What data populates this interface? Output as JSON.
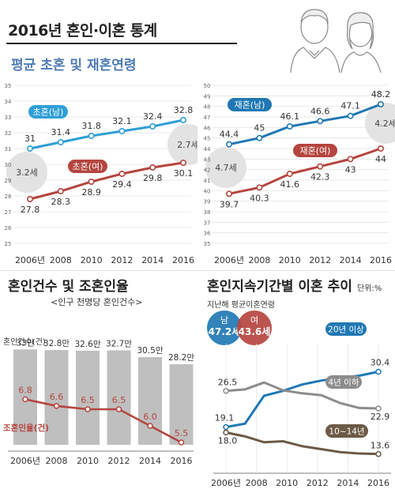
{
  "header": {
    "title": "2016년 혼인·이혼 통계"
  },
  "sections": {
    "age_title": "평균 초혼 및 재혼연령",
    "marriage_title": "혼인건수 및 조혼인율",
    "marriage_subtitle": "<인구 천명당 혼인건수>",
    "divorce_title": "혼인지속기간별 이혼 추이",
    "divorce_unit": "단위:%"
  },
  "colors": {
    "blue": "#2f9fd6",
    "red": "#b5453f",
    "navy": "#1f78b4",
    "grey_line": "#8c8c8c",
    "brown": "#6b5a45",
    "bar": "#bfbfbf",
    "title_blue": "#4f7bb5"
  },
  "chart_data": [
    {
      "id": "first-marriage-age",
      "type": "line",
      "x": [
        "2006년",
        "2008",
        "2010",
        "2012",
        "2014",
        "2016"
      ],
      "ylim": [
        25,
        35
      ],
      "yticks": [
        25,
        26,
        27,
        28,
        29,
        30,
        31,
        32,
        33,
        34,
        35
      ],
      "series": [
        {
          "name": "초혼(남)",
          "values": [
            31,
            31.4,
            31.8,
            32.1,
            32.4,
            32.8
          ],
          "labels": [
            "31",
            "31.4",
            "31.8",
            "32.1",
            "32.4",
            "32.8"
          ],
          "color": "#2f9fd6"
        },
        {
          "name": "초혼(여)",
          "values": [
            27.8,
            28.3,
            28.9,
            29.4,
            29.8,
            30.1
          ],
          "labels": [
            "27.8",
            "28.3",
            "28.9",
            "29.4",
            "29.8",
            "30.1"
          ],
          "color": "#b5453f"
        }
      ],
      "gap_labels": [
        "3.2세",
        "2.7세"
      ]
    },
    {
      "id": "remarriage-age",
      "type": "line",
      "x": [
        "2006년",
        "2008",
        "2010",
        "2012",
        "2014",
        "2016"
      ],
      "ylim": [
        35,
        50
      ],
      "yticks": [
        35,
        36,
        37,
        38,
        39,
        40,
        41,
        42,
        43,
        44,
        45,
        46,
        47,
        48,
        49,
        50
      ],
      "series": [
        {
          "name": "재혼(남)",
          "values": [
            44.4,
            45,
            46.1,
            46.6,
            47.1,
            48.2
          ],
          "labels": [
            "44.4",
            "45",
            "46.1",
            "46.6",
            "47.1",
            "48.2"
          ],
          "color": "#1f78b4"
        },
        {
          "name": "재혼(여)",
          "values": [
            39.7,
            40.3,
            41.6,
            42.3,
            43,
            44
          ],
          "labels": [
            "39.7",
            "40.3",
            "41.6",
            "42.3",
            "43",
            "44"
          ],
          "color": "#b5453f"
        }
      ],
      "gap_labels": [
        "4.7세",
        "4.2세"
      ]
    },
    {
      "id": "marriage-count",
      "type": "bar",
      "categories": [
        "2006년",
        "2008",
        "2010",
        "2012",
        "2014",
        "2016"
      ],
      "bar_series": {
        "name": "혼인건수(건)",
        "values": [
          33,
          32.8,
          32.6,
          32.7,
          30.5,
          28.2
        ],
        "labels": [
          "33만",
          "32.8만",
          "32.6만",
          "32.7만",
          "30.5만",
          "28.2만"
        ]
      },
      "line_series": {
        "name": "조혼인율(건)",
        "values": [
          6.8,
          6.6,
          6.5,
          6.5,
          6.0,
          5.5
        ],
        "labels": [
          "6.8",
          "6.6",
          "6.5",
          "6.5",
          "6.0",
          "5.5"
        ],
        "color": "#b5453f"
      }
    },
    {
      "id": "divorce-duration",
      "type": "line",
      "x": [
        "2006년",
        "2008",
        "2010",
        "2012",
        "2014",
        "2016"
      ],
      "avg_label": "지난해 평균이혼연령",
      "avg_badges": [
        {
          "name": "남",
          "value": "47.2세",
          "color": "#1f78b4"
        },
        {
          "name": "여",
          "value": "43.6세",
          "color": "#b5453f"
        }
      ],
      "series": [
        {
          "name": "20년 이상",
          "start": 19.1,
          "end": 30.4,
          "start_label": "19.1",
          "end_label": "30.4",
          "color": "#1f78b4"
        },
        {
          "name": "4년 이하",
          "start": 26.5,
          "end": 22.9,
          "start_label": "26.5",
          "end_label": "22.9",
          "color": "#8c8c8c"
        },
        {
          "name": "10~14년",
          "start": 18.0,
          "end": 13.6,
          "start_label": "18.0",
          "end_label": "13.6",
          "color": "#6b5a45"
        }
      ]
    }
  ]
}
